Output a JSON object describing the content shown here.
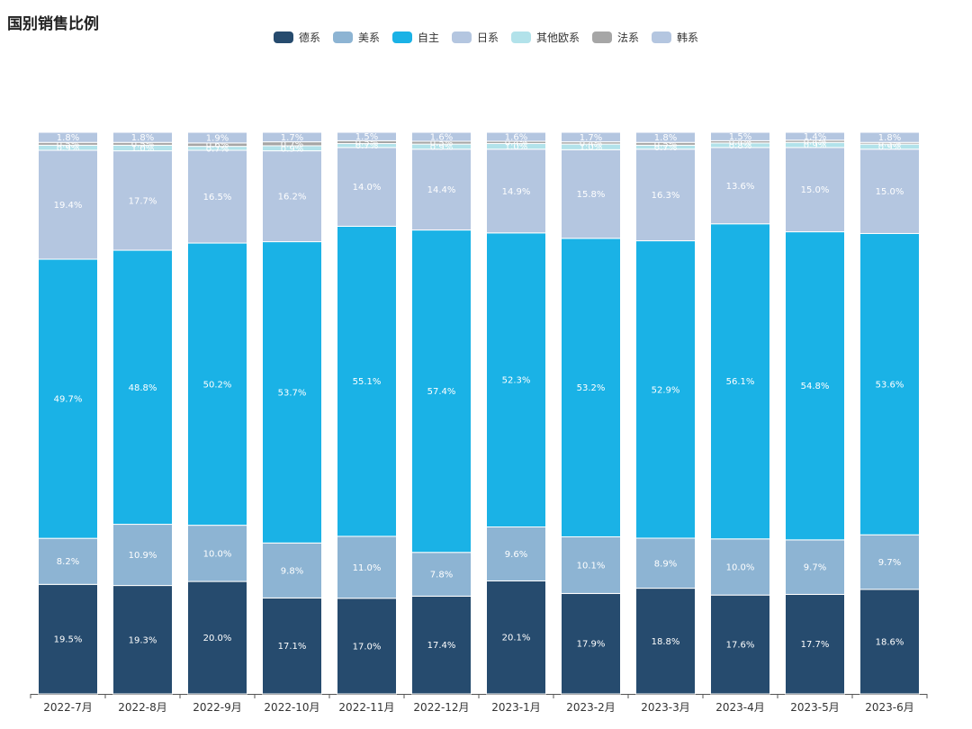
{
  "chart_data": {
    "type": "bar",
    "stacked": true,
    "title": "国别销售比例",
    "categories": [
      "2022-7月",
      "2022-8月",
      "2022-9月",
      "2022-10月",
      "2022-11月",
      "2022-12月",
      "2023-1月",
      "2023-2月",
      "2023-3月",
      "2023-4月",
      "2023-5月",
      "2023-6月"
    ],
    "series": [
      {
        "name": "德系",
        "color": "#264b6e",
        "values": [
          19.5,
          19.3,
          20.0,
          17.1,
          17.0,
          17.4,
          20.1,
          17.9,
          18.8,
          17.6,
          17.7,
          18.6
        ]
      },
      {
        "name": "美系",
        "color": "#8db4d3",
        "values": [
          8.2,
          10.9,
          10.0,
          9.8,
          11.0,
          7.8,
          9.6,
          10.1,
          8.9,
          10.0,
          9.7,
          9.7
        ]
      },
      {
        "name": "自主",
        "color": "#1ab2e6",
        "values": [
          49.7,
          48.8,
          50.2,
          53.7,
          55.1,
          57.4,
          52.3,
          53.2,
          52.9,
          56.1,
          54.8,
          53.6
        ]
      },
      {
        "name": "日系",
        "color": "#b4c6e0",
        "values": [
          19.4,
          17.7,
          16.5,
          16.2,
          14.0,
          14.4,
          14.9,
          15.8,
          16.3,
          13.6,
          15.0,
          15.0
        ]
      },
      {
        "name": "其他欧系",
        "color": "#b2e2ea",
        "values": [
          0.9,
          1.0,
          0.7,
          0.9,
          0.7,
          0.9,
          1.0,
          1.0,
          0.7,
          0.8,
          0.9,
          0.9
        ]
      },
      {
        "name": "法系",
        "color": "#a6a6a6",
        "values": [
          0.5,
          0.5,
          0.6,
          0.7,
          0.5,
          0.5,
          0.4,
          0.4,
          0.5,
          0.4,
          0.4,
          0.3
        ]
      },
      {
        "name": "韩系",
        "color": "#b4c6e0",
        "values": [
          1.8,
          1.8,
          1.9,
          1.7,
          1.5,
          1.6,
          1.6,
          1.7,
          1.8,
          1.5,
          1.4,
          1.8
        ]
      }
    ],
    "ylim": [
      0,
      100
    ],
    "grid": false,
    "legend_position": "top-center"
  }
}
